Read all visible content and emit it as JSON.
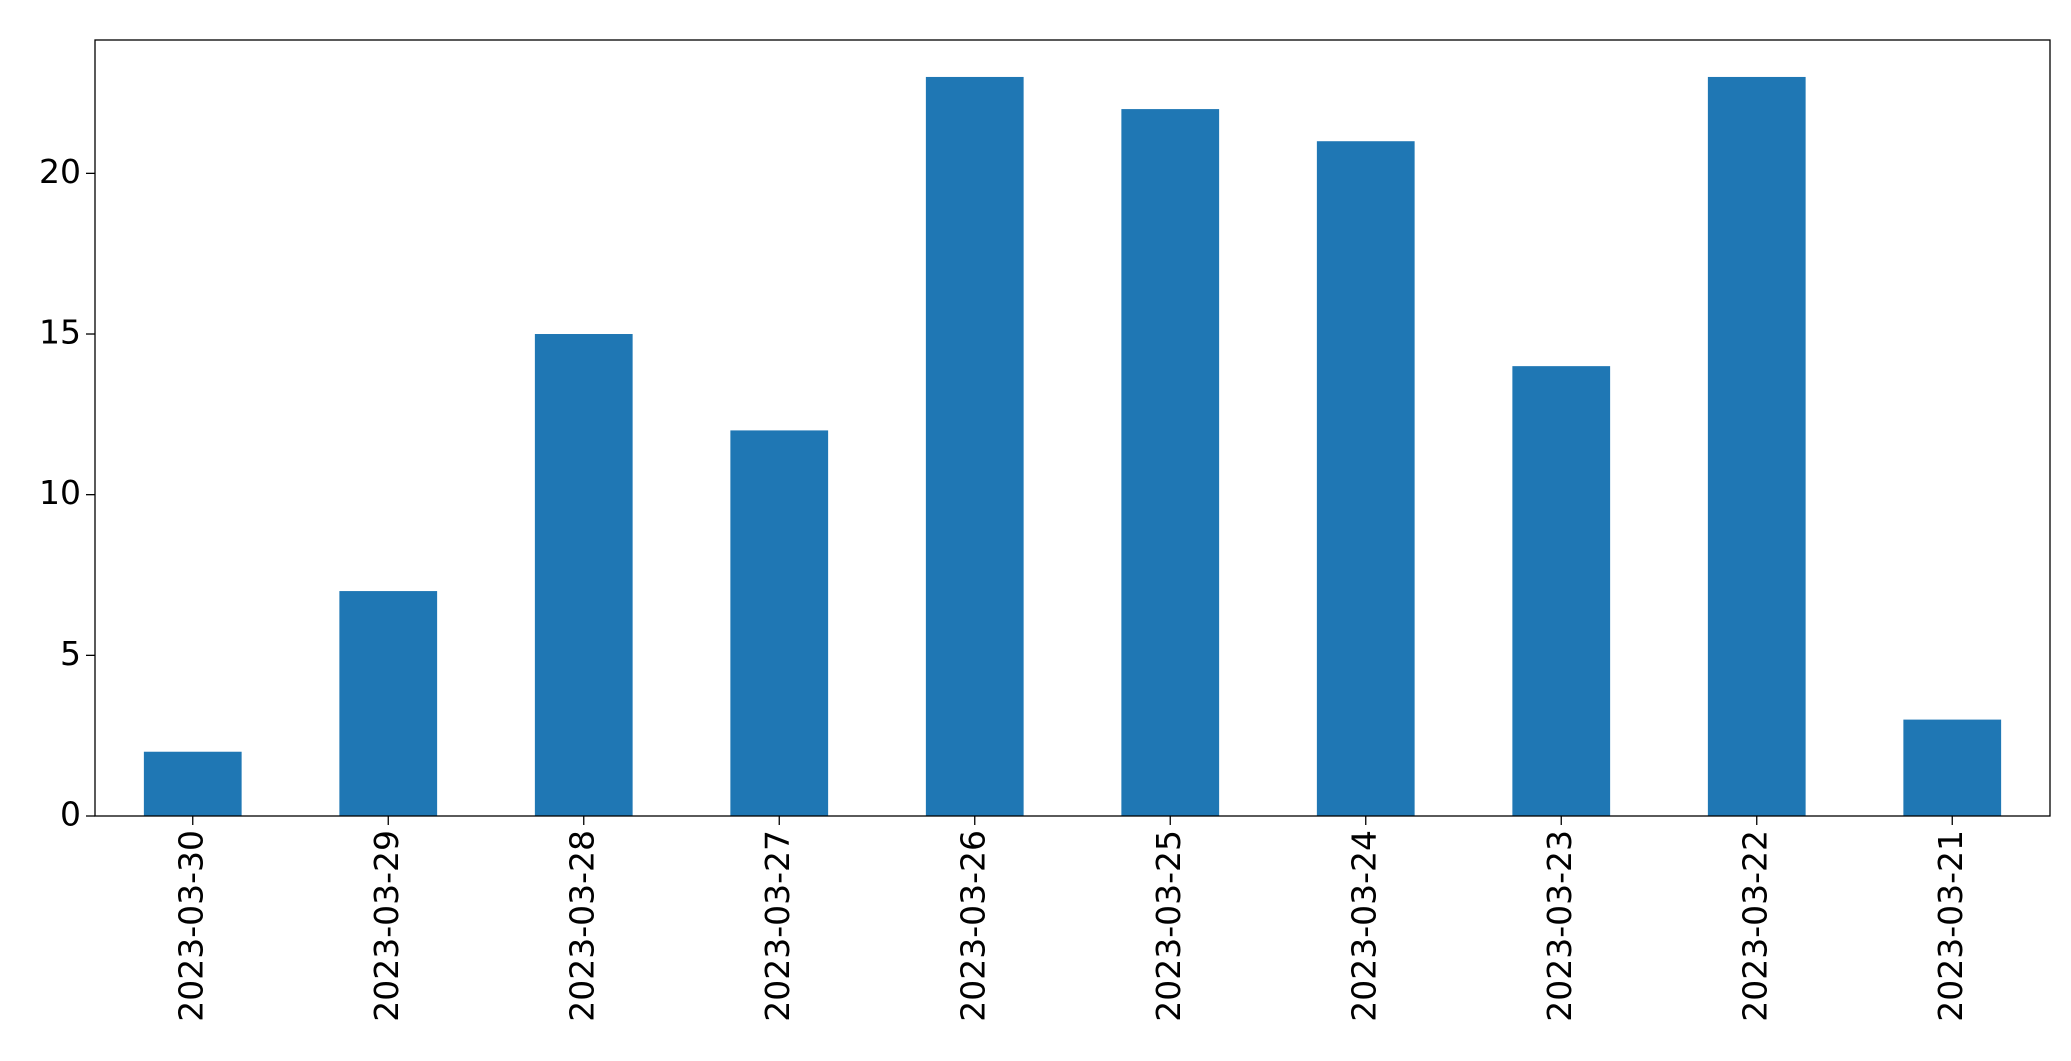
{
  "chart_data": {
    "type": "bar",
    "categories": [
      "2023-03-30",
      "2023-03-29",
      "2023-03-28",
      "2023-03-27",
      "2023-03-26",
      "2023-03-25",
      "2023-03-24",
      "2023-03-23",
      "2023-03-22",
      "2023-03-21"
    ],
    "values": [
      2,
      7,
      15,
      12,
      23,
      22,
      21,
      14,
      23,
      3
    ],
    "color": "#1f77b4",
    "ylim": [
      0,
      24.15
    ],
    "yticks": [
      0,
      5,
      10,
      15,
      20
    ],
    "grid": false
  }
}
